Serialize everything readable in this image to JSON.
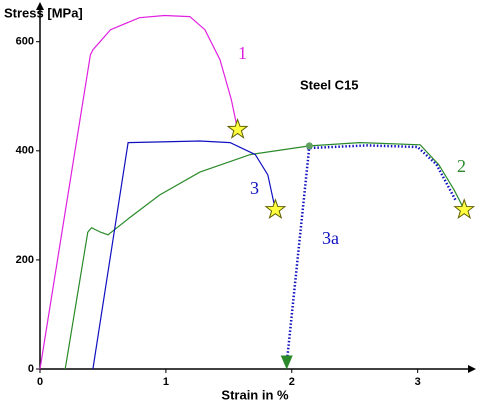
{
  "chart_data": {
    "type": "line",
    "title": "Steel  C15",
    "x_label": "Strain in %",
    "y_label": "Stress [MPa]",
    "xlim": [
      0,
      3.4
    ],
    "ylim": [
      0,
      660
    ],
    "xticks": [
      0,
      1,
      2,
      3
    ],
    "yticks": [
      0,
      200,
      400,
      600
    ],
    "series": [
      {
        "name": "1",
        "color": "#e020e0",
        "marker": "star",
        "x": [
          0,
          0.4,
          0.42,
          0.56,
          0.79,
          0.99,
          1.19,
          1.31,
          1.43,
          1.52,
          1.57
        ],
        "y": [
          0,
          576,
          585,
          622,
          644,
          648,
          646,
          622,
          567,
          494,
          439
        ]
      },
      {
        "name": "2",
        "color": "#2a8a2a",
        "marker": "star",
        "x": [
          0.2,
          0.38,
          0.41,
          0.48,
          0.54,
          0.71,
          0.95,
          1.27,
          1.67,
          2.14,
          2.54,
          3.02,
          3.17,
          3.29,
          3.37
        ],
        "y": [
          0,
          251,
          259,
          251,
          246,
          277,
          319,
          361,
          393,
          409,
          415,
          411,
          374,
          328,
          292
        ]
      },
      {
        "name": "3",
        "color": "#1010c0",
        "marker": "star",
        "x": [
          0.42,
          0.7,
          1.27,
          1.51,
          1.71,
          1.81,
          1.87
        ],
        "y": [
          0,
          415,
          418,
          415,
          393,
          356,
          292
        ]
      },
      {
        "name": "3a",
        "color": "#1010c0",
        "dotted": true,
        "x": [
          2.14,
          1.96,
          null,
          2.12,
          2.6,
          3.0,
          3.15,
          3.3
        ],
        "y": [
          409,
          10,
          null,
          405,
          410,
          407,
          375,
          310
        ]
      }
    ]
  }
}
